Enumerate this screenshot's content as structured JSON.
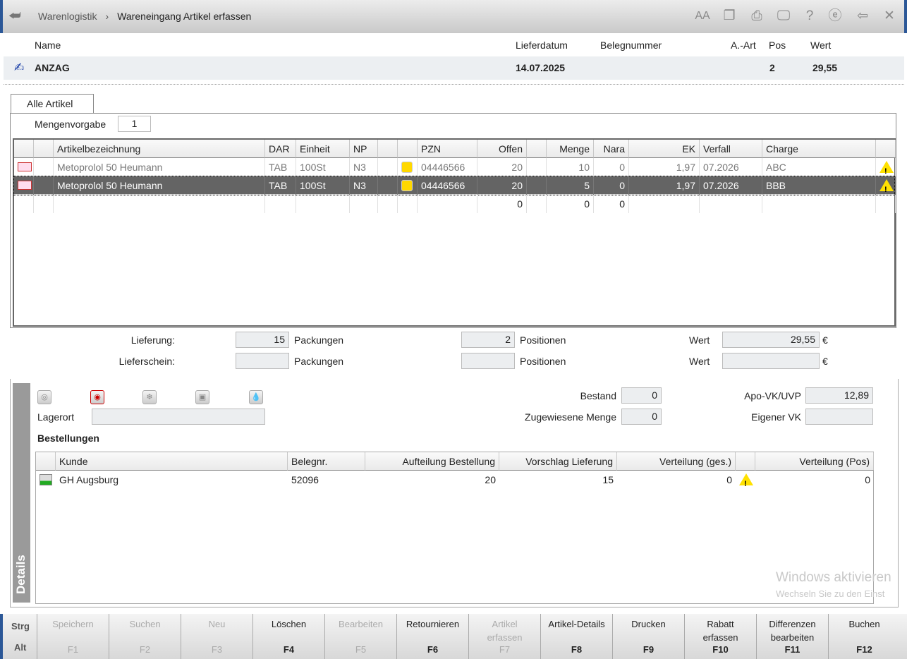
{
  "titlebar": {
    "breadcrumb": [
      "Warenlogistik",
      "Wareneingang Artikel erfassen"
    ],
    "separator": "›",
    "icons": [
      "back-icon",
      "font-size-icon",
      "copy-icon",
      "print-icon",
      "monitor-icon",
      "help-icon",
      "internet-icon",
      "exit-window-icon",
      "close-icon"
    ]
  },
  "header": {
    "labels": {
      "name": "Name",
      "lieferdatum": "Lieferdatum",
      "belegnummer": "Belegnummer",
      "aart": "A.-Art",
      "pos": "Pos",
      "wert": "Wert"
    },
    "values": {
      "name": "ANZAG",
      "lieferdatum": "14.07.2025",
      "belegnummer": "",
      "aart": "",
      "pos": "2",
      "wert": "29,55"
    }
  },
  "tab": "Alle Artikel",
  "mengenvorgabe": {
    "label": "Mengenvorgabe",
    "value": "1"
  },
  "articles": {
    "columns": [
      "",
      "",
      "Artikelbezeichnung",
      "DAR",
      "Einheit",
      "NP",
      "",
      "",
      "PZN",
      "Offen",
      "",
      "Menge",
      "Nara",
      "EK",
      "Verfall",
      "Charge",
      ""
    ],
    "rows": [
      {
        "name": "Metoprolol 50 Heumann",
        "dar": "TAB",
        "einheit": "100St",
        "np": "N3",
        "pzn": "04446566",
        "offen": "20",
        "menge": "10",
        "nara": "0",
        "ek": "1,97",
        "verfall": "07.2026",
        "charge": "ABC",
        "selected": false,
        "warning": true
      },
      {
        "name": "Metoprolol 50 Heumann",
        "dar": "TAB",
        "einheit": "100St",
        "np": "N3",
        "pzn": "04446566",
        "offen": "20",
        "menge": "5",
        "nara": "0",
        "ek": "1,97",
        "verfall": "07.2026",
        "charge": "BBB",
        "selected": true,
        "warning": true
      }
    ],
    "totals": {
      "offen": "0",
      "menge": "0",
      "nara": "0"
    }
  },
  "summary": {
    "lieferung": {
      "label": "Lieferung:",
      "packungen": "15",
      "positionen": "2",
      "wert": "29,55"
    },
    "lieferschein": {
      "label": "Lieferschein:",
      "packungen": "",
      "positionen": "",
      "wert": ""
    },
    "packungen_label": "Packungen",
    "positionen_label": "Positionen",
    "wert_label": "Wert",
    "currency": "€"
  },
  "details": {
    "sidebar_label": "Details",
    "lagerort_label": "Lagerort",
    "lagerort": "",
    "bestand_label": "Bestand",
    "bestand": "0",
    "zugewiesen_label": "Zugewiesene Menge",
    "zugewiesen": "0",
    "apovk_label": "Apo-VK/UVP",
    "apovk": "12,89",
    "eigenvk_label": "Eigener VK",
    "eigenvk": "",
    "icons": [
      "info-disc-icon",
      "flag-icon",
      "cooling-icon",
      "package-icon",
      "drop-icon"
    ],
    "bestellungen_title": "Bestellungen",
    "orders": {
      "columns": [
        "",
        "Kunde",
        "Belegnr.",
        "Aufteilung Bestellung",
        "Vorschlag Lieferung",
        "Verteilung (ges.)",
        "",
        "Verteilung (Pos)"
      ],
      "rows": [
        {
          "kunde": "GH Augsburg",
          "belegnr": "52096",
          "aufteilung": "20",
          "vorschlag": "15",
          "verteilung_ges": "0",
          "verteilung_pos": "0",
          "warning": true
        }
      ]
    }
  },
  "footer": {
    "mod1": "Strg",
    "mod2": "Alt",
    "buttons": [
      {
        "label": "Speichern",
        "key": "F1",
        "enabled": false
      },
      {
        "label": "Suchen",
        "key": "F2",
        "enabled": false
      },
      {
        "label": "Neu",
        "key": "F3",
        "enabled": false
      },
      {
        "label": "Löschen",
        "key": "F4",
        "enabled": true
      },
      {
        "label": "Bearbeiten",
        "key": "F5",
        "enabled": false
      },
      {
        "label": "Retournieren",
        "key": "F6",
        "enabled": true
      },
      {
        "label": "Artikel erfassen",
        "key": "F7",
        "enabled": false
      },
      {
        "label": "Artikel-Details",
        "key": "F8",
        "enabled": true
      },
      {
        "label": "Drucken",
        "key": "F9",
        "enabled": true
      },
      {
        "label": "Rabatt erfassen",
        "key": "F10",
        "enabled": true
      },
      {
        "label": "Differenzen bearbeiten",
        "key": "F11",
        "enabled": true
      },
      {
        "label": "Buchen",
        "key": "F12",
        "enabled": true
      }
    ]
  },
  "watermark": {
    "line1": "Windows aktivieren",
    "line2": "Wechseln Sie zu den Einst"
  }
}
